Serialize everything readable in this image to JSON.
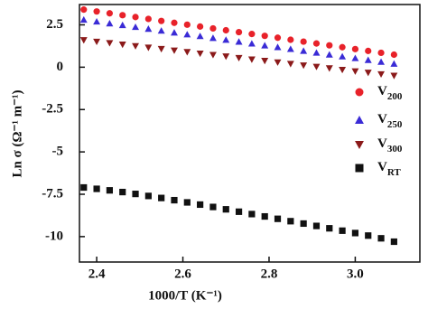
{
  "chart_data": {
    "type": "scatter",
    "xlabel": "1000/T (K⁻¹)",
    "ylabel": "Ln σ (Ω⁻¹ m⁻¹)",
    "xlim": [
      2.36,
      3.15
    ],
    "ylim": [
      -11.5,
      3.7
    ],
    "xticks": [
      2.4,
      2.6,
      2.8,
      {
        "value": 3,
        "label": "3.0"
      }
    ],
    "yticks": [
      2.5,
      0,
      -2.5,
      -5,
      -7.5,
      -10
    ],
    "x": [
      2.37,
      2.4,
      2.43,
      2.46,
      2.49,
      2.52,
      2.55,
      2.58,
      2.61,
      2.64,
      2.67,
      2.7,
      2.73,
      2.76,
      2.79,
      2.82,
      2.85,
      2.88,
      2.91,
      2.94,
      2.97,
      3.0,
      3.03,
      3.06,
      3.09
    ],
    "series": [
      {
        "name": "V200",
        "color": "#e8222a",
        "marker": "circle",
        "values": [
          3.4,
          3.29,
          3.18,
          3.07,
          2.96,
          2.85,
          2.73,
          2.62,
          2.51,
          2.4,
          2.29,
          2.18,
          2.07,
          1.96,
          1.85,
          1.74,
          1.62,
          1.51,
          1.4,
          1.29,
          1.18,
          1.07,
          0.96,
          0.85,
          0.74
        ]
      },
      {
        "name": "V250",
        "color": "#3a2bd6",
        "marker": "triangle-up",
        "values": [
          2.8,
          2.69,
          2.58,
          2.48,
          2.37,
          2.26,
          2.15,
          2.04,
          1.93,
          1.83,
          1.72,
          1.61,
          1.5,
          1.39,
          1.28,
          1.18,
          1.07,
          0.96,
          0.85,
          0.74,
          0.63,
          0.53,
          0.42,
          0.31,
          0.2
        ]
      },
      {
        "name": "V300",
        "color": "#8b1a1a",
        "marker": "triangle-down",
        "values": [
          1.6,
          1.51,
          1.43,
          1.34,
          1.25,
          1.16,
          1.08,
          0.99,
          0.9,
          0.81,
          0.73,
          0.64,
          0.55,
          0.46,
          0.38,
          0.29,
          0.2,
          0.11,
          0.03,
          -0.06,
          -0.15,
          -0.24,
          -0.32,
          -0.41,
          -0.5
        ]
      },
      {
        "name": "VRT",
        "color": "#111111",
        "marker": "square",
        "values": [
          -7.1,
          -7.18,
          -7.27,
          -7.37,
          -7.48,
          -7.6,
          -7.72,
          -7.85,
          -7.98,
          -8.11,
          -8.25,
          -8.39,
          -8.53,
          -8.67,
          -8.81,
          -8.95,
          -9.09,
          -9.23,
          -9.37,
          -9.51,
          -9.65,
          -9.79,
          -9.94,
          -10.1,
          -10.3
        ]
      }
    ],
    "legend": "right"
  }
}
